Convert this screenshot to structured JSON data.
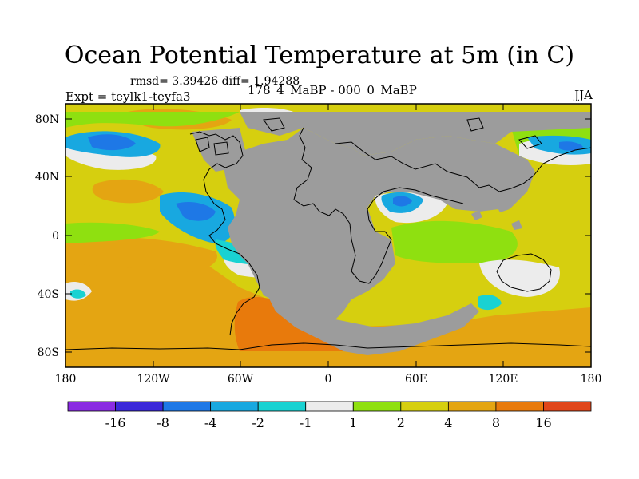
{
  "title": "Ocean Potential Temperature at 5m (in C)",
  "subtitle_stats": "rmsd= 3.39426 diff= 1.94288",
  "left_label": "Expt = teylk1-teyfa3",
  "center_label": "178_4_MaBP - 000_0_MaBP",
  "right_label": "JJA",
  "lat_ticks": [
    "80N",
    "40N",
    "0",
    "40S",
    "80S"
  ],
  "lon_ticks": [
    "180",
    "120W",
    "60W",
    "0",
    "60E",
    "120E",
    "180"
  ],
  "colorbar": {
    "labels": [
      "-16",
      "-8",
      "-4",
      "-2",
      "-1",
      "1",
      "2",
      "4",
      "8",
      "16"
    ],
    "colors": [
      "#8a2be2",
      "#3a28d9",
      "#1e78e6",
      "#18a8e0",
      "#19d2d2",
      "#ececec",
      "#8fe010",
      "#d6cf0f",
      "#e4a512",
      "#e87a0c",
      "#e0461a"
    ]
  },
  "colors": {
    "land": "#9c9c9c",
    "background": "#ffffff"
  }
}
